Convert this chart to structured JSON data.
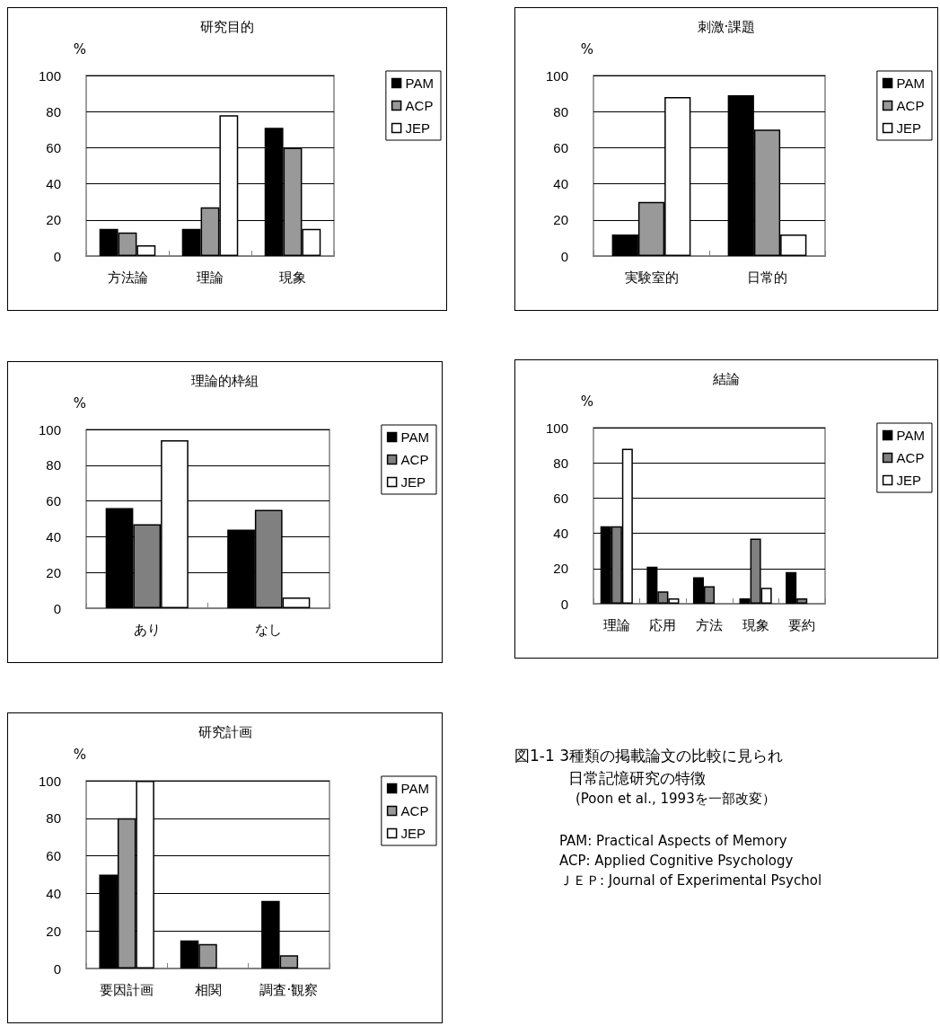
{
  "chart_data": [
    {
      "type": "bar",
      "title": "研究目的",
      "ylabel": "%",
      "categories": [
        "方法論",
        "理論",
        "現象"
      ],
      "series": [
        {
          "name": "PAM",
          "color": "#000000",
          "values": [
            15,
            15,
            71
          ]
        },
        {
          "name": "ACP",
          "color": "#999999",
          "values": [
            13,
            27,
            60
          ]
        },
        {
          "name": "JEP",
          "color": "#ffffff",
          "values": [
            6,
            78,
            15
          ]
        }
      ],
      "ylim": [
        0,
        100
      ],
      "yticks": [
        0,
        20,
        40,
        60,
        80,
        100
      ],
      "grid": "y",
      "legend": "right"
    },
    {
      "type": "bar",
      "title": "刺激·課題",
      "ylabel": "%",
      "categories": [
        "実験室的",
        "日常的"
      ],
      "series": [
        {
          "name": "PAM",
          "color": "#000000",
          "values": [
            12,
            89
          ]
        },
        {
          "name": "ACP",
          "color": "#999999",
          "values": [
            30,
            70
          ]
        },
        {
          "name": "JEP",
          "color": "#ffffff",
          "values": [
            88,
            12
          ]
        }
      ],
      "ylim": [
        0,
        100
      ],
      "yticks": [
        0,
        20,
        40,
        60,
        80,
        100
      ],
      "grid": "y",
      "legend": "right"
    },
    {
      "type": "bar",
      "title": "理論的枠組",
      "ylabel": "%",
      "categories": [
        "あり",
        "なし"
      ],
      "series": [
        {
          "name": "PAM",
          "color": "#000000",
          "values": [
            56,
            44
          ]
        },
        {
          "name": "ACP",
          "color": "#808080",
          "values": [
            47,
            55
          ]
        },
        {
          "name": "JEP",
          "color": "#ffffff",
          "values": [
            94,
            6
          ]
        }
      ],
      "ylim": [
        0,
        100
      ],
      "yticks": [
        0,
        20,
        40,
        60,
        80,
        100
      ],
      "grid": "y",
      "legend": "right"
    },
    {
      "type": "bar",
      "title": "結論",
      "ylabel": "%",
      "categories": [
        "理論",
        "応用",
        "方法",
        "現象",
        "要約"
      ],
      "series": [
        {
          "name": "PAM",
          "color": "#000000",
          "values": [
            44,
            21,
            15,
            3,
            18
          ]
        },
        {
          "name": "ACP",
          "color": "#808080",
          "values": [
            44,
            7,
            10,
            37,
            3
          ]
        },
        {
          "name": "JEP",
          "color": "#ffffff",
          "values": [
            88,
            3,
            null,
            9,
            null
          ]
        }
      ],
      "ylim": [
        0,
        100
      ],
      "yticks": [
        0,
        20,
        40,
        60,
        80,
        100
      ],
      "grid": "y",
      "legend": "right"
    },
    {
      "type": "bar",
      "title": "研究計画",
      "ylabel": "%",
      "categories": [
        "要因計画",
        "相関",
        "調査·観察"
      ],
      "series": [
        {
          "name": "PAM",
          "color": "#000000",
          "values": [
            50,
            15,
            36
          ]
        },
        {
          "name": "ACP",
          "color": "#999999",
          "values": [
            80,
            13,
            7
          ]
        },
        {
          "name": "JEP",
          "color": "#ffffff",
          "values": [
            100,
            null,
            null
          ]
        }
      ],
      "ylim": [
        0,
        100
      ],
      "yticks": [
        0,
        20,
        40,
        60,
        80,
        100
      ],
      "grid": "y",
      "legend": "right"
    },
    {
      "type": "other",
      "annotations": [
        "図1-1 3種類の掲載論文の比較に見られ",
        "日常記憶研究の特徴",
        "(Poon et al., 1993を一部改変）",
        "PAM: Practical Aspects of Memory",
        "ACP: Applied Cognitive Psychology",
        "ＪＥＰ: Journal of Experimental Psychol"
      ]
    }
  ]
}
